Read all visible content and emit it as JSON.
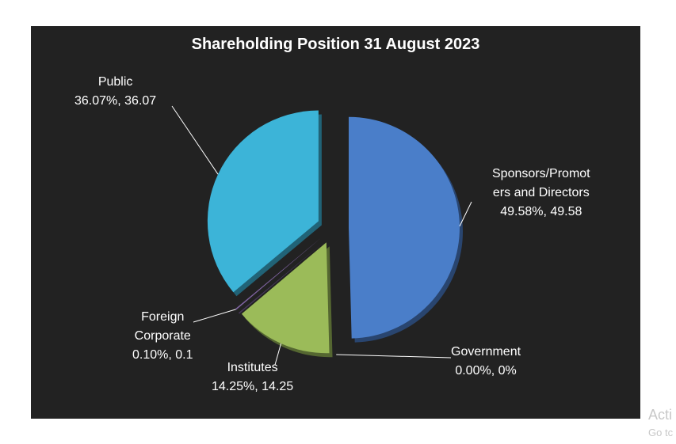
{
  "chart_data": {
    "type": "pie",
    "title": "Shareholding Position 31 August 2023",
    "slices": [
      {
        "name": "Sponsors/Promoters and Directors",
        "name_line1": "Sponsors/Promot",
        "name_line2": "ers and Directors",
        "percent": 49.58,
        "value": "49.58",
        "label": "49.58%, 49.58",
        "color": "#4a7ec9"
      },
      {
        "name": "Government",
        "percent": 0.0,
        "value": "0%",
        "label": "0.00%, 0%",
        "color": "#888888"
      },
      {
        "name": "Institutes",
        "percent": 14.25,
        "value": "14.25",
        "label": "14.25%, 14.25",
        "color": "#9bbb59"
      },
      {
        "name": "Foreign Corporate",
        "name_line1": "Foreign",
        "name_line2": "Corporate",
        "percent": 0.1,
        "value": "0.1",
        "label": "0.10%, 0.1",
        "color": "#8064a2"
      },
      {
        "name": "Public",
        "percent": 36.07,
        "value": "36.07",
        "label": "36.07%, 36.07",
        "color": "#3cb4d8"
      }
    ],
    "background": "#222222",
    "legend": "none",
    "data_labels": "outside with leader lines",
    "style": "exploded 3D pie"
  },
  "watermark": {
    "line1": "Acti",
    "line2": "Go tc"
  }
}
